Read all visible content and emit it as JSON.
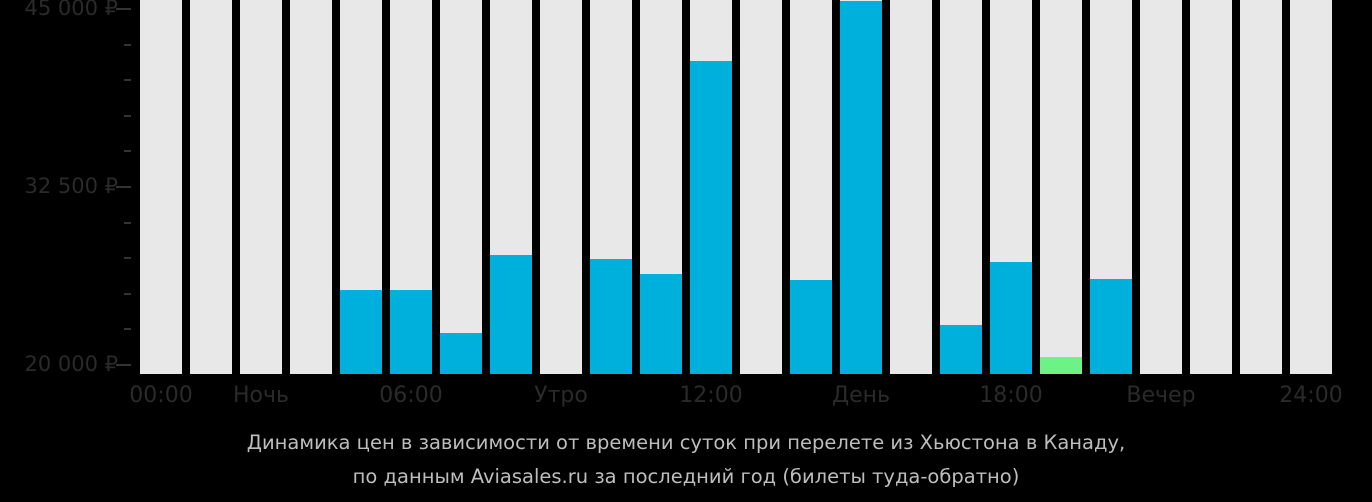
{
  "chart_data": {
    "type": "bar",
    "title": "Динамика цен в зависимости от времени суток при перелете из Хьюстона в Канаду, по данным Aviasales.ru за последний год (билеты туда-обратно)",
    "xlabel": "",
    "ylabel": "",
    "ylim": [
      19370,
      45630
    ],
    "grid": false,
    "legend": null,
    "y_ticks": [
      "20 000 ₽",
      "32 500 ₽",
      "45 000 ₽"
    ],
    "x_tick_labels": [
      "00:00",
      "Ночь",
      "06:00",
      "Утро",
      "12:00",
      "День",
      "18:00",
      "Вечер",
      "24:00"
    ],
    "categories": [
      "00",
      "01",
      "02",
      "03",
      "04",
      "05",
      "06",
      "07",
      "08",
      "09",
      "10",
      "11",
      "12",
      "13",
      "14",
      "15",
      "16",
      "17",
      "18",
      "19",
      "20",
      "21",
      "22",
      "23"
    ],
    "values": [
      null,
      null,
      null,
      null,
      25270,
      25270,
      22250,
      27720,
      null,
      27440,
      26390,
      41350,
      null,
      25970,
      45560,
      null,
      22810,
      27230,
      20560,
      26040,
      null,
      null,
      null,
      null
    ],
    "highlight": {
      "index": 18,
      "color": "#6cf287",
      "note": "cheapest"
    },
    "colors": {
      "bar": "#00b0dc",
      "cheapest": "#6cf287",
      "empty": "#e8e8e8",
      "background": "#000000"
    }
  },
  "axis": {
    "y_labels": [
      {
        "text": "45 000 ₽",
        "y": 9
      },
      {
        "text": "32 500 ₽",
        "y": 187
      },
      {
        "text": "20 000 ₽",
        "y": 365
      }
    ],
    "x_labels": [
      {
        "text": "00:00",
        "x": 161
      },
      {
        "text": "Ночь",
        "x": 261
      },
      {
        "text": "06:00",
        "x": 411
      },
      {
        "text": "Утро",
        "x": 561
      },
      {
        "text": "12:00",
        "x": 711
      },
      {
        "text": "День",
        "x": 861
      },
      {
        "text": "18:00",
        "x": 1011
      },
      {
        "text": "Вечер",
        "x": 1161
      },
      {
        "text": "24:00",
        "x": 1311
      }
    ]
  },
  "caption": {
    "line1": "Динамика цен в зависимости от времени суток при перелете из Хьюстона в Канаду,",
    "line2": "по данным Aviasales.ru за последний год (билеты туда-обратно)"
  }
}
